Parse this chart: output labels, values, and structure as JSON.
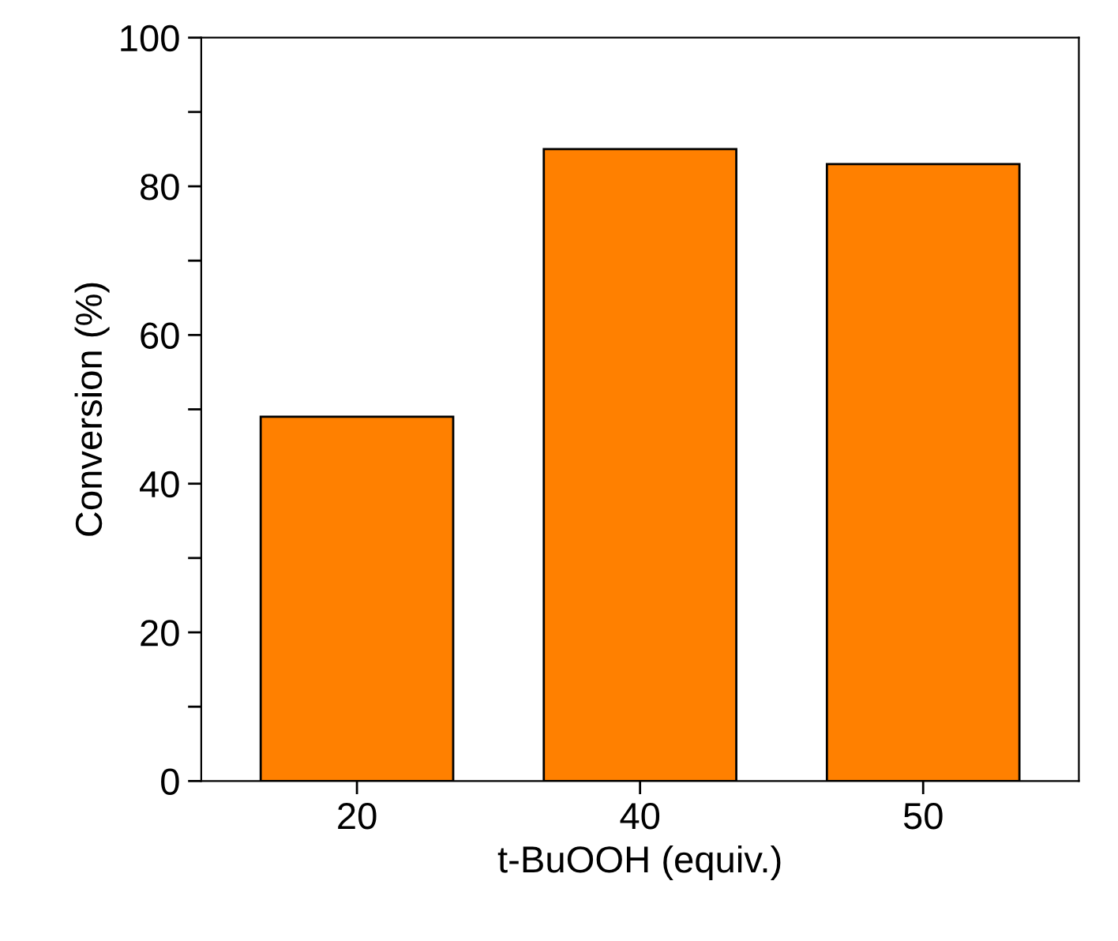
{
  "chart_data": {
    "type": "bar",
    "xlabel": "t-BuOOH (equiv.)",
    "ylabel": "Conversion (%)",
    "categories": [
      "20",
      "40",
      "50"
    ],
    "values": [
      49,
      85,
      83
    ],
    "color": "#ff8000",
    "ylim": [
      0,
      100
    ],
    "yticks": [
      0,
      {
        "value": 10,
        "label": null
      },
      20,
      {
        "value": 30,
        "label": null
      },
      40,
      {
        "value": 50,
        "label": null
      },
      60,
      {
        "value": 70,
        "label": null
      },
      80,
      {
        "value": 90,
        "label": null
      },
      100
    ],
    "grid": false,
    "legend": false
  }
}
